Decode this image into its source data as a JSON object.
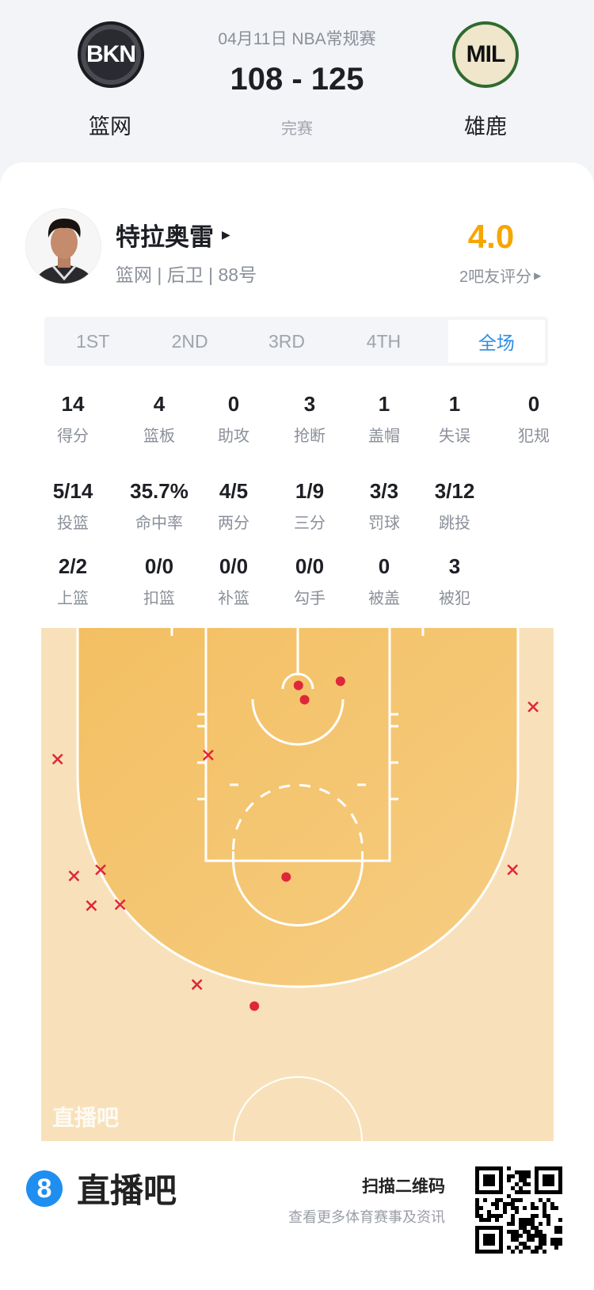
{
  "header": {
    "date_league": "04月11日 NBA常规赛",
    "score": "108 - 125",
    "status": "完赛",
    "home": {
      "abbr": "BKN",
      "name": "篮网"
    },
    "away": {
      "abbr": "MIL",
      "name": "雄鹿"
    }
  },
  "player": {
    "name": "特拉奥雷",
    "info": "篮网 | 后卫 | 88号",
    "rating": "4.0",
    "rating_label": "2吧友评分",
    "rating_color": "#f5a600"
  },
  "tabs": [
    {
      "label": "1ST"
    },
    {
      "label": "2ND"
    },
    {
      "label": "3RD"
    },
    {
      "label": "4TH"
    },
    {
      "label": "全场",
      "active": true
    }
  ],
  "stats": [
    [
      {
        "v": "14",
        "l": "得分"
      },
      {
        "v": "4",
        "l": "篮板"
      },
      {
        "v": "0",
        "l": "助攻"
      },
      {
        "v": "3",
        "l": "抢断"
      },
      {
        "v": "1",
        "l": "盖帽"
      },
      {
        "v": "1",
        "l": "失误"
      },
      {
        "v": "0",
        "l": "犯规"
      }
    ],
    [
      {
        "v": "5/14",
        "l": "投篮"
      },
      {
        "v": "35.7%",
        "l": "命中率"
      },
      {
        "v": "4/5",
        "l": "两分"
      },
      {
        "v": "1/9",
        "l": "三分"
      },
      {
        "v": "3/3",
        "l": "罚球"
      },
      {
        "v": "3/12",
        "l": "跳投"
      }
    ],
    [
      {
        "v": "2/2",
        "l": "上篮"
      },
      {
        "v": "0/0",
        "l": "扣篮"
      },
      {
        "v": "0/0",
        "l": "补篮"
      },
      {
        "v": "0/0",
        "l": "勾手"
      },
      {
        "v": "0",
        "l": "被盖"
      },
      {
        "v": "3",
        "l": "被犯"
      }
    ]
  ],
  "chart_data": {
    "type": "scatter",
    "units": "feet (x from left sideline, y from baseline)",
    "court_size": [
      50,
      50
    ],
    "made_color": "#e0263a",
    "miss_color": "#e0263a",
    "made": [
      [
        25.1,
        5.6
      ],
      [
        25.7,
        7.0
      ],
      [
        29.2,
        5.2
      ],
      [
        23.9,
        24.3
      ],
      [
        20.8,
        36.9
      ]
    ],
    "missed": [
      [
        48.0,
        7.7
      ],
      [
        1.6,
        12.8
      ],
      [
        16.3,
        12.4
      ],
      [
        3.2,
        24.2
      ],
      [
        5.8,
        23.6
      ],
      [
        4.9,
        27.1
      ],
      [
        7.7,
        27.0
      ],
      [
        15.2,
        34.8
      ],
      [
        46.0,
        23.6
      ]
    ],
    "watermark": "直播吧"
  },
  "footer": {
    "brand_number": "8",
    "brand_name": "直播吧",
    "qr_title": "扫描二维码",
    "qr_subtitle": "查看更多体育赛事及资讯"
  }
}
